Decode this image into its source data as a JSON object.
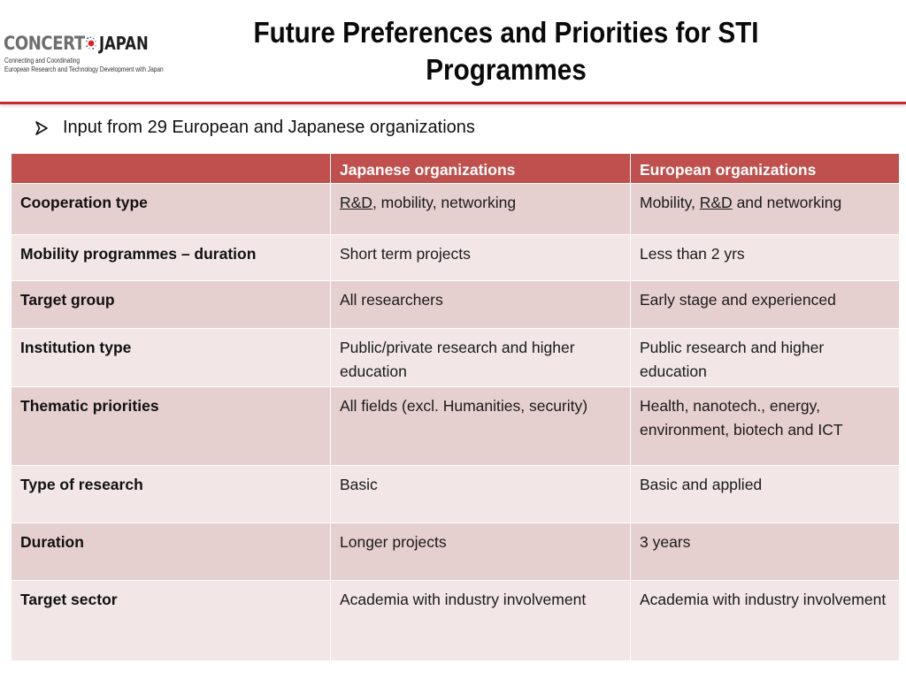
{
  "logo": {
    "concert": "CONCERT",
    "japan": "JAPAN",
    "tagline_1": "Connecting and Coordinating",
    "tagline_2": "European Research and Technology Development with Japan"
  },
  "title": "Future Preferences and Priorities for STI Programmes",
  "bullet": "Input from 29 European and Japanese organizations",
  "colors": {
    "header_row": "#c0504d",
    "row_band_dark": "#e6cfcf",
    "row_band_light": "#f2e6e6",
    "title_rule": "#c8282d"
  },
  "table": {
    "headers": [
      "",
      "Japanese organizations",
      "European organizations"
    ],
    "rows": [
      {
        "label": "Cooperation type",
        "japanese_underlined": "R&D",
        "japanese_rest": ", mobility, networking",
        "european_prefix": "Mobility, ",
        "european_underlined": "R&D",
        "european_suffix": " and networking"
      },
      {
        "label": "Mobility programmes – duration",
        "japanese": "Short term projects",
        "european": "Less than 2 yrs"
      },
      {
        "label": "Target group",
        "japanese": "All researchers",
        "european": "Early stage and experienced"
      },
      {
        "label": "Institution type",
        "japanese": "Public/private research and higher education",
        "european": "Public research and higher education"
      },
      {
        "label": "Thematic priorities",
        "japanese": "All fields (excl. Humanities, security)",
        "european": "Health, nanotech., energy, environment, biotech and ICT"
      },
      {
        "label": "Type of research",
        "japanese": "Basic",
        "european": "Basic and applied"
      },
      {
        "label": "Duration",
        "japanese": "Longer projects",
        "european": "3 years"
      },
      {
        "label": "Target sector",
        "japanese": "Academia with industry involvement",
        "european": "Academia with industry involvement"
      }
    ]
  }
}
